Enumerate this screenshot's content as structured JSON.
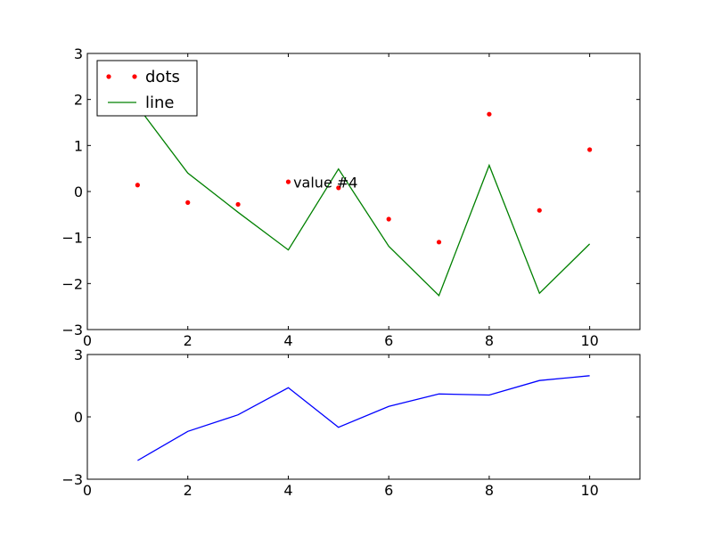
{
  "chart_data": [
    {
      "type": "line",
      "title": "",
      "xlabel": "",
      "ylabel": "",
      "xlim": [
        0,
        11
      ],
      "ylim": [
        -3,
        3
      ],
      "xticks": [
        0,
        2,
        4,
        6,
        8,
        10
      ],
      "xtick_labels": [
        "0",
        "2",
        "4",
        "6",
        "8",
        "10"
      ],
      "yticks": [
        3,
        2,
        1,
        0,
        -1,
        -2,
        -3
      ],
      "ytick_labels": [
        "3",
        "2",
        "1",
        "0",
        "−1",
        "−2",
        "−3"
      ],
      "grid": false,
      "legend_position": "top-left",
      "series": [
        {
          "name": "dots",
          "mode": "markers",
          "color": "#ff0000",
          "x": [
            1,
            2,
            3,
            4,
            5,
            6,
            7,
            8,
            9,
            10
          ],
          "y": [
            0.14,
            -0.24,
            -0.28,
            0.21,
            0.08,
            -0.6,
            -1.1,
            1.68,
            -0.41,
            0.91
          ]
        },
        {
          "name": "line",
          "mode": "line",
          "color": "#008000",
          "x": [
            1,
            2,
            3,
            4,
            5,
            6,
            7,
            8,
            9,
            10
          ],
          "y": [
            1.85,
            0.4,
            -0.45,
            -1.27,
            0.49,
            -1.19,
            -2.26,
            0.57,
            -2.21,
            -1.14
          ]
        }
      ],
      "annotations": [
        {
          "text": "value #4",
          "x": 4.1,
          "y": 0.2
        }
      ]
    },
    {
      "type": "line",
      "title": "",
      "xlabel": "",
      "ylabel": "",
      "xlim": [
        0,
        11
      ],
      "ylim": [
        -3,
        3
      ],
      "xticks": [
        0,
        2,
        4,
        6,
        8,
        10
      ],
      "xtick_labels": [
        "0",
        "2",
        "4",
        "6",
        "8",
        "10"
      ],
      "yticks": [
        3,
        0,
        -3
      ],
      "ytick_labels": [
        "3",
        "0",
        "−3"
      ],
      "grid": false,
      "series": [
        {
          "mode": "line",
          "color": "#0000ff",
          "x": [
            1,
            2,
            3,
            4,
            5,
            6,
            7,
            8,
            9,
            10
          ],
          "y": [
            -2.1,
            -0.7,
            0.1,
            1.4,
            -0.5,
            0.5,
            1.1,
            1.05,
            1.75,
            1.98
          ]
        }
      ]
    }
  ]
}
